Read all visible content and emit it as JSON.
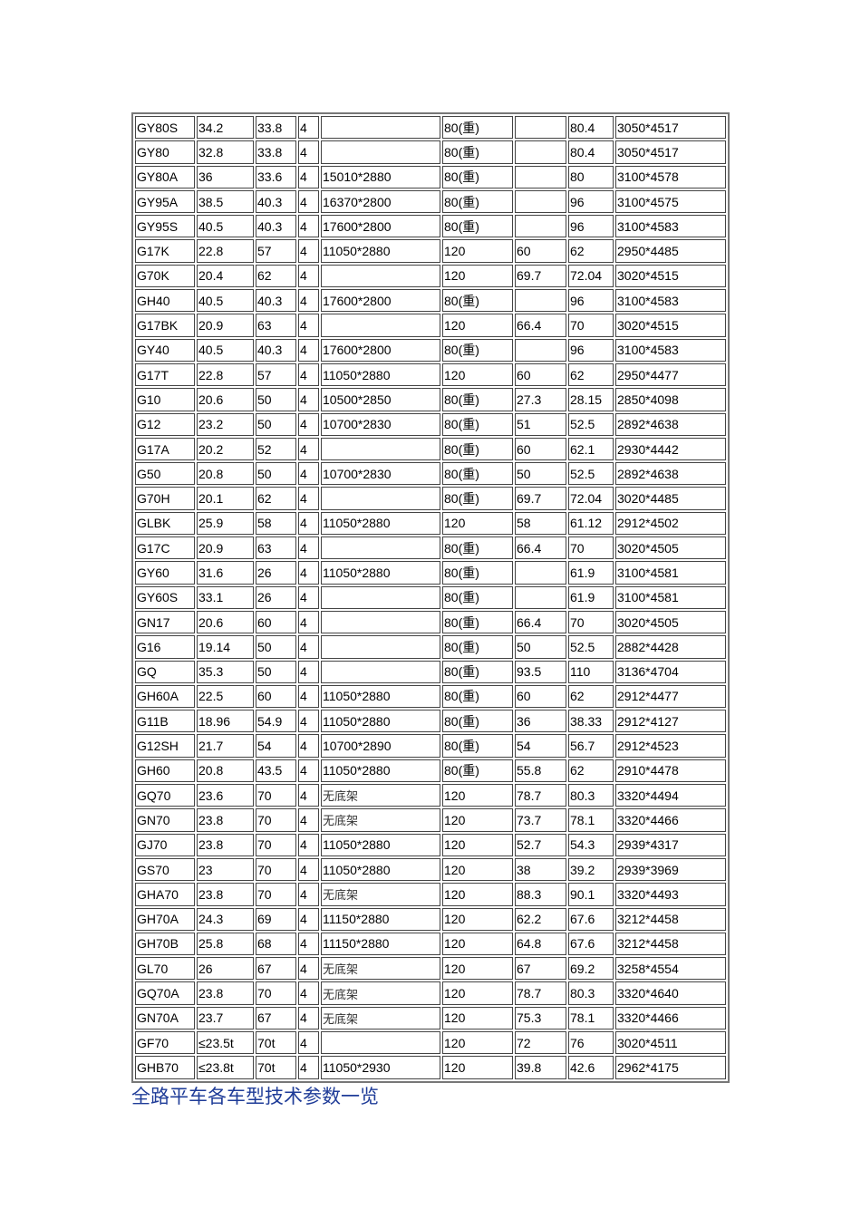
{
  "title": "全路平车各车型技术参数一览",
  "rows": [
    [
      "GY80S",
      "34.2",
      "33.8",
      "4",
      "",
      "80(重)",
      "",
      "80.4",
      "3050*4517"
    ],
    [
      "GY80",
      "32.8",
      "33.8",
      "4",
      "",
      "80(重)",
      "",
      "80.4",
      "3050*4517"
    ],
    [
      "GY80A",
      "36",
      "33.6",
      "4",
      "15010*2880",
      "80(重)",
      "",
      "80",
      "3100*4578"
    ],
    [
      "GY95A",
      "38.5",
      "40.3",
      "4",
      "16370*2800",
      "80(重)",
      "",
      "96",
      "3100*4575"
    ],
    [
      "GY95S",
      "40.5",
      "40.3",
      "4",
      "17600*2800",
      "80(重)",
      "",
      "96",
      "3100*4583"
    ],
    [
      "G17K",
      "22.8",
      "57",
      "4",
      "11050*2880",
      "120",
      "60",
      "62",
      "2950*4485"
    ],
    [
      "G70K",
      "20.4",
      "62",
      "4",
      "",
      "120",
      "69.7",
      "72.04",
      "3020*4515"
    ],
    [
      "GH40",
      "40.5",
      "40.3",
      "4",
      "17600*2800",
      "80(重)",
      "",
      "96",
      "3100*4583"
    ],
    [
      "G17BK",
      "20.9",
      "63",
      "4",
      "",
      "120",
      "66.4",
      "70",
      "3020*4515"
    ],
    [
      "GY40",
      "40.5",
      "40.3",
      "4",
      "17600*2800",
      "80(重)",
      "",
      "96",
      "3100*4583"
    ],
    [
      "G17T",
      "22.8",
      "57",
      "4",
      "11050*2880",
      "120",
      "60",
      "62",
      "2950*4477"
    ],
    [
      "G10",
      "20.6",
      "50",
      "4",
      "10500*2850",
      "80(重)",
      "27.3",
      "28.15",
      "2850*4098"
    ],
    [
      "G12",
      "23.2",
      "50",
      "4",
      "10700*2830",
      "80(重)",
      "51",
      "52.5",
      "2892*4638"
    ],
    [
      "G17A",
      "20.2",
      "52",
      "4",
      "",
      "80(重)",
      "60",
      "62.1",
      "2930*4442"
    ],
    [
      "G50",
      "20.8",
      "50",
      "4",
      "10700*2830",
      "80(重)",
      "50",
      "52.5",
      "2892*4638"
    ],
    [
      "G70H",
      "20.1",
      "62",
      "4",
      "",
      "80(重)",
      "69.7",
      "72.04",
      "3020*4485"
    ],
    [
      "GLBK",
      "25.9",
      "58",
      "4",
      "11050*2880",
      "120",
      "58",
      "61.12",
      "2912*4502"
    ],
    [
      "G17C",
      "20.9",
      "63",
      "4",
      "",
      "80(重)",
      "66.4",
      "70",
      "3020*4505"
    ],
    [
      "GY60",
      "31.6",
      "26",
      "4",
      "11050*2880",
      "80(重)",
      "",
      "61.9",
      "3100*4581"
    ],
    [
      "GY60S",
      "33.1",
      "26",
      "4",
      "",
      "80(重)",
      "",
      "61.9",
      "3100*4581"
    ],
    [
      "GN17",
      "20.6",
      "60",
      "4",
      "",
      "80(重)",
      "66.4",
      "70",
      "3020*4505"
    ],
    [
      "G16",
      "19.14",
      "50",
      "4",
      "",
      "80(重)",
      "50",
      "52.5",
      "2882*4428"
    ],
    [
      "GQ",
      "35.3",
      "50",
      "4",
      "",
      "80(重)",
      "93.5",
      "110",
      "3136*4704"
    ],
    [
      "GH60A",
      "22.5",
      "60",
      "4",
      "11050*2880",
      "80(重)",
      "60",
      "62",
      "2912*4477"
    ],
    [
      "G11B",
      "18.96",
      "54.9",
      "4",
      "11050*2880",
      "80(重)",
      "36",
      "38.33",
      "2912*4127"
    ],
    [
      "G12SH",
      "21.7",
      "54",
      "4",
      "10700*2890",
      "80(重)",
      "54",
      "56.7",
      "2912*4523"
    ],
    [
      "GH60",
      "20.8",
      "43.5",
      "4",
      "11050*2880",
      "80(重)",
      "55.8",
      "62",
      "2910*4478"
    ],
    [
      "GQ70",
      "23.6",
      "70",
      "4",
      "无底架",
      "120",
      "78.7",
      "80.3",
      "3320*4494"
    ],
    [
      "GN70",
      "23.8",
      "70",
      "4",
      "无底架",
      "120",
      "73.7",
      "78.1",
      "3320*4466"
    ],
    [
      "GJ70",
      "23.8",
      "70",
      "4",
      "11050*2880",
      "120",
      "52.7",
      "54.3",
      "2939*4317"
    ],
    [
      "GS70",
      "23",
      "70",
      "4",
      "11050*2880",
      "120",
      "38",
      "39.2",
      "2939*3969"
    ],
    [
      "GHA70",
      "23.8",
      "70",
      "4",
      "无底架",
      "120",
      "88.3",
      "90.1",
      "3320*4493"
    ],
    [
      "GH70A",
      "24.3",
      "69",
      "4",
      "11150*2880",
      "120",
      "62.2",
      "67.6",
      "3212*4458"
    ],
    [
      "GH70B",
      "25.8",
      "68",
      "4",
      "11150*2880",
      "120",
      "64.8",
      "67.6",
      "3212*4458"
    ],
    [
      "GL70",
      "26",
      "67",
      "4",
      "无底架",
      "120",
      "67",
      "69.2",
      "3258*4554"
    ],
    [
      "GQ70A",
      "23.8",
      "70",
      "4",
      "无底架",
      "120",
      "78.7",
      "80.3",
      "3320*4640"
    ],
    [
      "GN70A",
      "23.7",
      "67",
      "4",
      "无底架",
      "120",
      "75.3",
      "78.1",
      "3320*4466"
    ],
    [
      "GF70",
      "≤23.5t",
      "70t",
      "4",
      "",
      "120",
      "72",
      "76",
      "3020*4511"
    ],
    [
      "GHB70",
      "≤23.8t",
      "70t",
      "4",
      "11050*2930",
      "120",
      "39.8",
      "42.6",
      "2962*4175"
    ]
  ]
}
